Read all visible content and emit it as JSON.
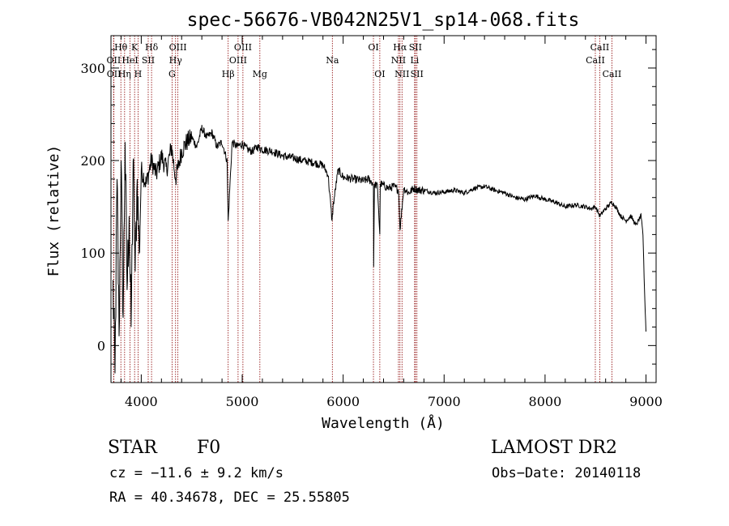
{
  "chart_data": {
    "type": "line",
    "title": "spec-56676-VB042N25V1_sp14-068.fits",
    "xlabel": "Wavelength (Å)",
    "ylabel": "Flux (relative)",
    "xlim": [
      3700,
      9100
    ],
    "ylim": [
      -40,
      335
    ],
    "xticks": [
      4000,
      5000,
      6000,
      7000,
      8000,
      9000
    ],
    "yticks": [
      0,
      100,
      200,
      300
    ],
    "grid": false,
    "line_color": "#000000",
    "marker_color": "#8b0000",
    "series": [
      {
        "x": [
          3720,
          3740,
          3760,
          3780,
          3800,
          3820,
          3840,
          3860,
          3880,
          3900,
          3920,
          3940,
          3960,
          3980,
          4000,
          4050,
          4100,
          4150,
          4200,
          4250,
          4300,
          4340,
          4400,
          4450,
          4500,
          4550,
          4600,
          4650,
          4700,
          4750,
          4800,
          4850,
          4861,
          4900,
          4950,
          5000,
          5050,
          5100,
          5150,
          5200,
          5300,
          5400,
          5500,
          5600,
          5700,
          5800,
          5850,
          5890,
          5900,
          5950,
          6000,
          6100,
          6200,
          6250,
          6300,
          6302,
          6310,
          6340,
          6363,
          6368,
          6400,
          6450,
          6500,
          6550,
          6563,
          6600,
          6650,
          6700,
          6750,
          6800,
          6900,
          7000,
          7100,
          7200,
          7300,
          7400,
          7500,
          7600,
          7700,
          7800,
          7900,
          8000,
          8100,
          8200,
          8300,
          8400,
          8450,
          8500,
          8542,
          8600,
          8662,
          8700,
          8750,
          8800,
          8850,
          8900,
          8950,
          8970,
          8985,
          9000
        ],
        "y": [
          60,
          -30,
          180,
          10,
          200,
          30,
          220,
          60,
          140,
          20,
          200,
          80,
          180,
          100,
          190,
          175,
          200,
          185,
          205,
          190,
          215,
          180,
          210,
          220,
          225,
          215,
          235,
          225,
          230,
          215,
          220,
          200,
          135,
          220,
          215,
          218,
          212,
          210,
          215,
          212,
          210,
          205,
          203,
          200,
          198,
          195,
          185,
          135,
          150,
          190,
          182,
          180,
          178,
          180,
          175,
          85,
          175,
          172,
          120,
          175,
          173,
          170,
          172,
          168,
          125,
          170,
          165,
          170,
          168,
          168,
          165,
          166,
          168,
          165,
          170,
          172,
          168,
          165,
          160,
          158,
          162,
          158,
          155,
          150,
          152,
          150,
          148,
          150,
          140,
          148,
          155,
          150,
          140,
          135,
          140,
          130,
          140,
          120,
          60,
          15
        ]
      }
    ],
    "lines": [
      {
        "label": "Hθ",
        "x": 3798,
        "row": 1
      },
      {
        "label": "OII",
        "x": 3727,
        "row": 2
      },
      {
        "label": "OII",
        "x": 3729,
        "row": 3
      },
      {
        "label": "Hη",
        "x": 3835,
        "row": 3
      },
      {
        "label": "K",
        "x": 3934,
        "row": 1
      },
      {
        "label": "HeI",
        "x": 3889,
        "row": 2
      },
      {
        "label": "SII",
        "x": 4069,
        "row": 2
      },
      {
        "label": "H",
        "x": 3968,
        "row": 3
      },
      {
        "label": "Hδ",
        "x": 4102,
        "row": 1
      },
      {
        "label": "OIII",
        "x": 4363,
        "row": 1
      },
      {
        "label": "Hγ",
        "x": 4340,
        "row": 2
      },
      {
        "label": "G",
        "x": 4305,
        "row": 3
      },
      {
        "label": "Hβ",
        "x": 4861,
        "row": 3
      },
      {
        "label": "OIII",
        "x": 5007,
        "row": 1
      },
      {
        "label": "OIII",
        "x": 4959,
        "row": 2
      },
      {
        "label": "Mg",
        "x": 5175,
        "row": 3
      },
      {
        "label": "Na",
        "x": 5893,
        "row": 2
      },
      {
        "label": "OI",
        "x": 6300,
        "row": 1
      },
      {
        "label": "OI",
        "x": 6363,
        "row": 3
      },
      {
        "label": "Hα",
        "x": 6563,
        "row": 1
      },
      {
        "label": "SII",
        "x": 6716,
        "row": 1
      },
      {
        "label": "NII",
        "x": 6548,
        "row": 2
      },
      {
        "label": "Li",
        "x": 6708,
        "row": 2
      },
      {
        "label": "NII",
        "x": 6583,
        "row": 3
      },
      {
        "label": "SII",
        "x": 6731,
        "row": 3
      },
      {
        "label": "CaII",
        "x": 8542,
        "row": 1
      },
      {
        "label": "CaII",
        "x": 8498,
        "row": 2
      },
      {
        "label": "CaII",
        "x": 8662,
        "row": 3
      }
    ]
  },
  "info": {
    "class": "STAR",
    "subclass": "F0",
    "survey": "LAMOST DR2",
    "cz": "cz = −11.6 ± 9.2 km/s",
    "obs_date": "Obs−Date: 20140118",
    "coords": "RA =  40.34678, DEC =  25.55805"
  }
}
